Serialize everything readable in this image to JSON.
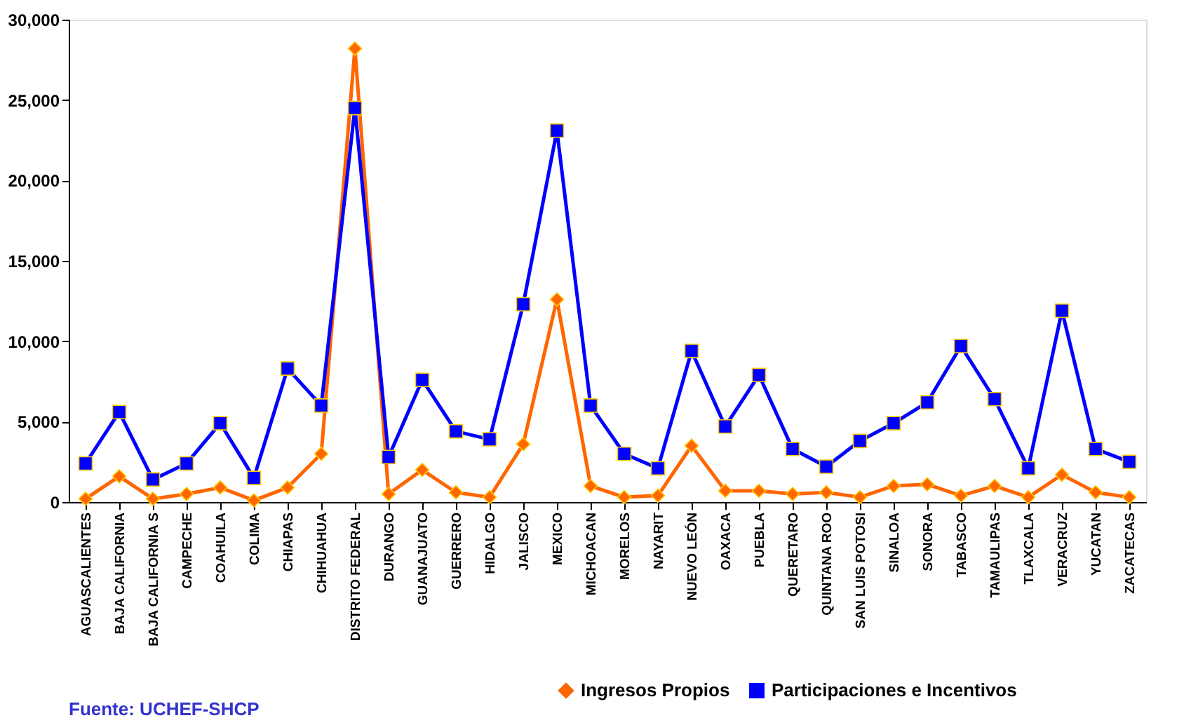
{
  "chart_data": {
    "type": "line",
    "categories": [
      "AGUASCALIENTES",
      "BAJA CALIFORNIA",
      "BAJA CALIFORNIA S",
      "CAMPECHE",
      "COAHUILA",
      "COLIMA",
      "CHIAPAS",
      "CHIHUAHUA",
      "DISTRITO FEDERAL",
      "DURANGO",
      "GUANAJUATO",
      "GUERRERO",
      "HIDALGO",
      "JALISCO",
      "MEXICO",
      "MICHOACAN",
      "MORELOS",
      "NAYARIT",
      "NUEVO LEÓN",
      "OAXACA",
      "PUEBLA",
      "QUERETARO",
      "QUINTANA ROO",
      "SAN LUIS POTOSI",
      "SINALOA",
      "SONORA",
      "TABASCO",
      "TAMAULIPAS",
      "TLAXCALA",
      "VERACRUZ",
      "YUCATAN",
      "ZACATECAS"
    ],
    "series": [
      {
        "name": "Ingresos Propios",
        "color": "#ff6600",
        "marker": "diamond",
        "values": [
          200,
          1600,
          200,
          500,
          900,
          100,
          900,
          3000,
          28200,
          500,
          2000,
          600,
          300,
          3600,
          12600,
          1000,
          300,
          400,
          3500,
          700,
          700,
          500,
          600,
          300,
          1000,
          1100,
          400,
          1000,
          300,
          1700,
          600,
          300
        ]
      },
      {
        "name": "Participaciones e Incentivos",
        "color": "#0000ff",
        "marker": "square",
        "values": [
          2400,
          5600,
          1400,
          2400,
          4900,
          1500,
          8300,
          6000,
          24500,
          2800,
          7600,
          4400,
          3900,
          12300,
          23100,
          6000,
          3000,
          2100,
          9400,
          4700,
          7900,
          3300,
          2200,
          3800,
          4900,
          6200,
          9700,
          6400,
          2100,
          11900,
          3300,
          2500
        ]
      }
    ],
    "ylim": [
      0,
      30000
    ],
    "yticks": [
      0,
      {
        "value": 5000,
        "label": "5,000"
      },
      {
        "value": 10000,
        "label": "10,000"
      },
      {
        "value": 15000,
        "label": "15,000"
      },
      {
        "value": 20000,
        "label": "20,000"
      },
      {
        "value": 25000,
        "label": "25,000"
      },
      {
        "value": 30000,
        "label": "30,000"
      }
    ],
    "grid": false,
    "legend": "bottom right",
    "line_style": "solid",
    "annotations": [
      "Fuente: UCHEF-SHCP"
    ]
  }
}
